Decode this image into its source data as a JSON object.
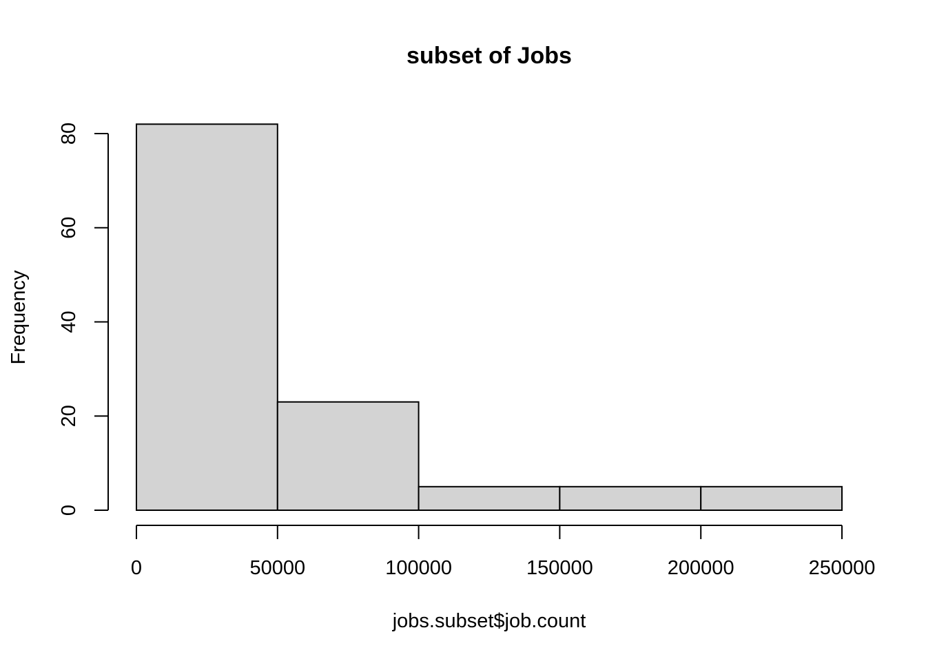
{
  "chart_data": {
    "type": "bar",
    "subtype": "histogram",
    "title": "subset of Jobs",
    "xlabel": "jobs.subset$job.count",
    "ylabel": "Frequency",
    "bins": [
      {
        "start": 0,
        "end": 50000,
        "count": 82
      },
      {
        "start": 50000,
        "end": 100000,
        "count": 23
      },
      {
        "start": 100000,
        "end": 150000,
        "count": 5
      },
      {
        "start": 150000,
        "end": 200000,
        "count": 5
      },
      {
        "start": 200000,
        "end": 250000,
        "count": 5
      }
    ],
    "xlim": [
      0,
      250000
    ],
    "ylim": [
      0,
      80
    ],
    "x_ticks": [
      0,
      50000,
      100000,
      150000,
      200000,
      250000
    ],
    "y_ticks": [
      0,
      20,
      40,
      60,
      80
    ],
    "x_tick_labels": [
      "0",
      "50000",
      "100000",
      "150000",
      "200000",
      "250000"
    ],
    "y_tick_labels": [
      "0",
      "20",
      "40",
      "60",
      "80"
    ],
    "bar_color": "#d3d3d3",
    "edge_color": "#000000",
    "grid": false,
    "legend": "none"
  }
}
